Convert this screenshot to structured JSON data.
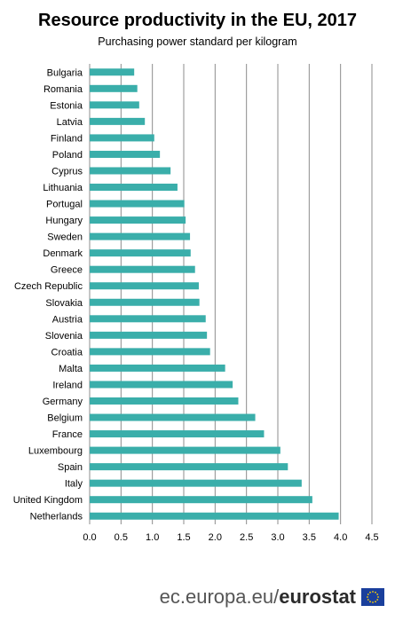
{
  "chart_data": {
    "type": "bar",
    "orientation": "horizontal",
    "title": "Resource productivity in the EU, 2017",
    "subtitle": "Purchasing power  standard per kilogram",
    "categories": [
      "Bulgaria",
      "Romania",
      "Estonia",
      "Latvia",
      "Finland",
      "Poland",
      "Cyprus",
      "Lithuania",
      "Portugal",
      "Hungary",
      "Sweden",
      "Denmark",
      "Greece",
      "Czech Republic",
      "Slovakia",
      "Austria",
      "Slovenia",
      "Croatia",
      "Malta",
      "Ireland",
      "Germany",
      "Belgium",
      "France",
      "Luxembourg",
      "Spain",
      "Italy",
      "United Kingdom",
      "Netherlands"
    ],
    "values": [
      0.71,
      0.76,
      0.79,
      0.88,
      1.03,
      1.12,
      1.29,
      1.4,
      1.51,
      1.53,
      1.6,
      1.61,
      1.68,
      1.74,
      1.75,
      1.85,
      1.87,
      1.92,
      2.16,
      2.28,
      2.37,
      2.64,
      2.78,
      3.04,
      3.16,
      3.38,
      3.55,
      3.97
    ],
    "xlim": [
      0,
      4.5
    ],
    "xticks": [
      "0.0",
      "0.5",
      "1.0",
      "1.5",
      "2.0",
      "2.5",
      "3.0",
      "3.5",
      "4.0",
      "4.5"
    ],
    "grid": true,
    "bar_color": "#3aaeaa"
  },
  "footer": {
    "site": "ec.europa.eu/",
    "brand": "eurostat"
  }
}
